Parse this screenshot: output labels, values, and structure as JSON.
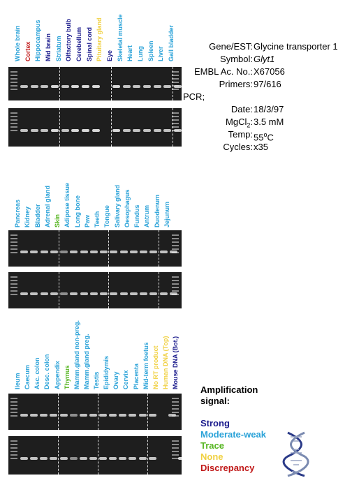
{
  "colors": {
    "strong": "#1a1a8c",
    "moderate": "#2aa2d8",
    "trace": "#55b520",
    "none": "#f0d040",
    "discrepancy": "#c01818"
  },
  "panels": [
    {
      "lanes": [
        {
          "label": "Whole brain",
          "level": "moderate"
        },
        {
          "label": "Cortex",
          "level": "discrepancy"
        },
        {
          "label": "Hippocampus",
          "level": "moderate"
        },
        {
          "label": "Mid brain",
          "level": "strong"
        },
        {
          "label": "Striatum",
          "level": "moderate"
        },
        {
          "label": "Olfactory bulb",
          "level": "strong"
        },
        {
          "label": "Cerebellum",
          "level": "strong"
        },
        {
          "label": "Spinal cord",
          "level": "strong"
        },
        {
          "label": "Pituitary gland",
          "level": "none"
        },
        {
          "label": "Eye",
          "level": "strong"
        },
        {
          "label": "Skeletal muscle",
          "level": "moderate"
        },
        {
          "label": "Heart",
          "level": "moderate"
        },
        {
          "label": "Lung",
          "level": "moderate"
        },
        {
          "label": "Spleen",
          "level": "moderate"
        },
        {
          "label": "Liver",
          "level": "moderate"
        },
        {
          "label": "Gall bladder",
          "level": "moderate"
        }
      ]
    },
    {
      "lanes": [
        {
          "label": "Pancreas",
          "level": "moderate"
        },
        {
          "label": "Kidney",
          "level": "moderate"
        },
        {
          "label": "Bladder",
          "level": "moderate"
        },
        {
          "label": "Adrenal gland",
          "level": "moderate"
        },
        {
          "label": "Skin",
          "level": "trace"
        },
        {
          "label": "Adipose tissue",
          "level": "moderate"
        },
        {
          "label": "Long bone",
          "level": "moderate"
        },
        {
          "label": "Paw",
          "level": "moderate"
        },
        {
          "label": "Teeth",
          "level": "moderate"
        },
        {
          "label": "Tongue",
          "level": "moderate"
        },
        {
          "label": "Salivary gland",
          "level": "moderate"
        },
        {
          "label": "Oesophagus",
          "level": "moderate"
        },
        {
          "label": "Fundus",
          "level": "moderate"
        },
        {
          "label": "Antrum",
          "level": "moderate"
        },
        {
          "label": "Duodenum",
          "level": "moderate"
        },
        {
          "label": "Jejunum",
          "level": "moderate"
        }
      ]
    },
    {
      "lanes": [
        {
          "label": "Ileum",
          "level": "moderate"
        },
        {
          "label": "Caecum",
          "level": "moderate"
        },
        {
          "label": "Asc. colon",
          "level": "moderate"
        },
        {
          "label": "Desc. colon",
          "level": "moderate"
        },
        {
          "label": "Appendix",
          "level": "moderate"
        },
        {
          "label": "Thymus",
          "level": "trace"
        },
        {
          "label": "Mamm.gland non-preg.",
          "level": "moderate"
        },
        {
          "label": "Mamm.gland preg.",
          "level": "moderate"
        },
        {
          "label": "Testis",
          "level": "moderate"
        },
        {
          "label": "Epididymis",
          "level": "moderate"
        },
        {
          "label": "Ovary",
          "level": "moderate"
        },
        {
          "label": "Cervix",
          "level": "moderate"
        },
        {
          "label": "Placenta",
          "level": "moderate"
        },
        {
          "label": "Mid-term foetus",
          "level": "moderate"
        },
        {
          "label": "No RT product",
          "level": "none"
        },
        {
          "label": "Human DNA (Top)",
          "level": "none"
        },
        {
          "label": "Mouse DNA (Bot.)",
          "level": "strong"
        }
      ]
    }
  ],
  "meta": [
    {
      "key": "Gene/EST:",
      "value": "Glycine transporter 1"
    },
    {
      "key": "Symbol:",
      "value": "Glyt1"
    },
    {
      "key": "EMBL Ac. No.:",
      "value": "X67056"
    },
    {
      "key": "Primers:",
      "value": "97/616"
    },
    {
      "key": "PCR;",
      "value": ""
    },
    {
      "key": "Date:",
      "value": "18/3/97"
    },
    {
      "key": "MgCl2:",
      "value": "3.5 mM"
    },
    {
      "key": "Temp:",
      "value": "55oC"
    },
    {
      "key": "Cycles:",
      "value": "x35"
    }
  ],
  "legend": {
    "title_line1": "Amplification",
    "title_line2": "signal:",
    "items": [
      {
        "label": "Strong",
        "level": "strong"
      },
      {
        "label": "Moderate-weak",
        "level": "moderate"
      },
      {
        "label": "Trace",
        "level": "trace"
      },
      {
        "label": "None",
        "level": "none"
      },
      {
        "label": "Discrepancy",
        "level": "discrepancy"
      }
    ]
  },
  "dna_icon": "dna-helix-icon"
}
